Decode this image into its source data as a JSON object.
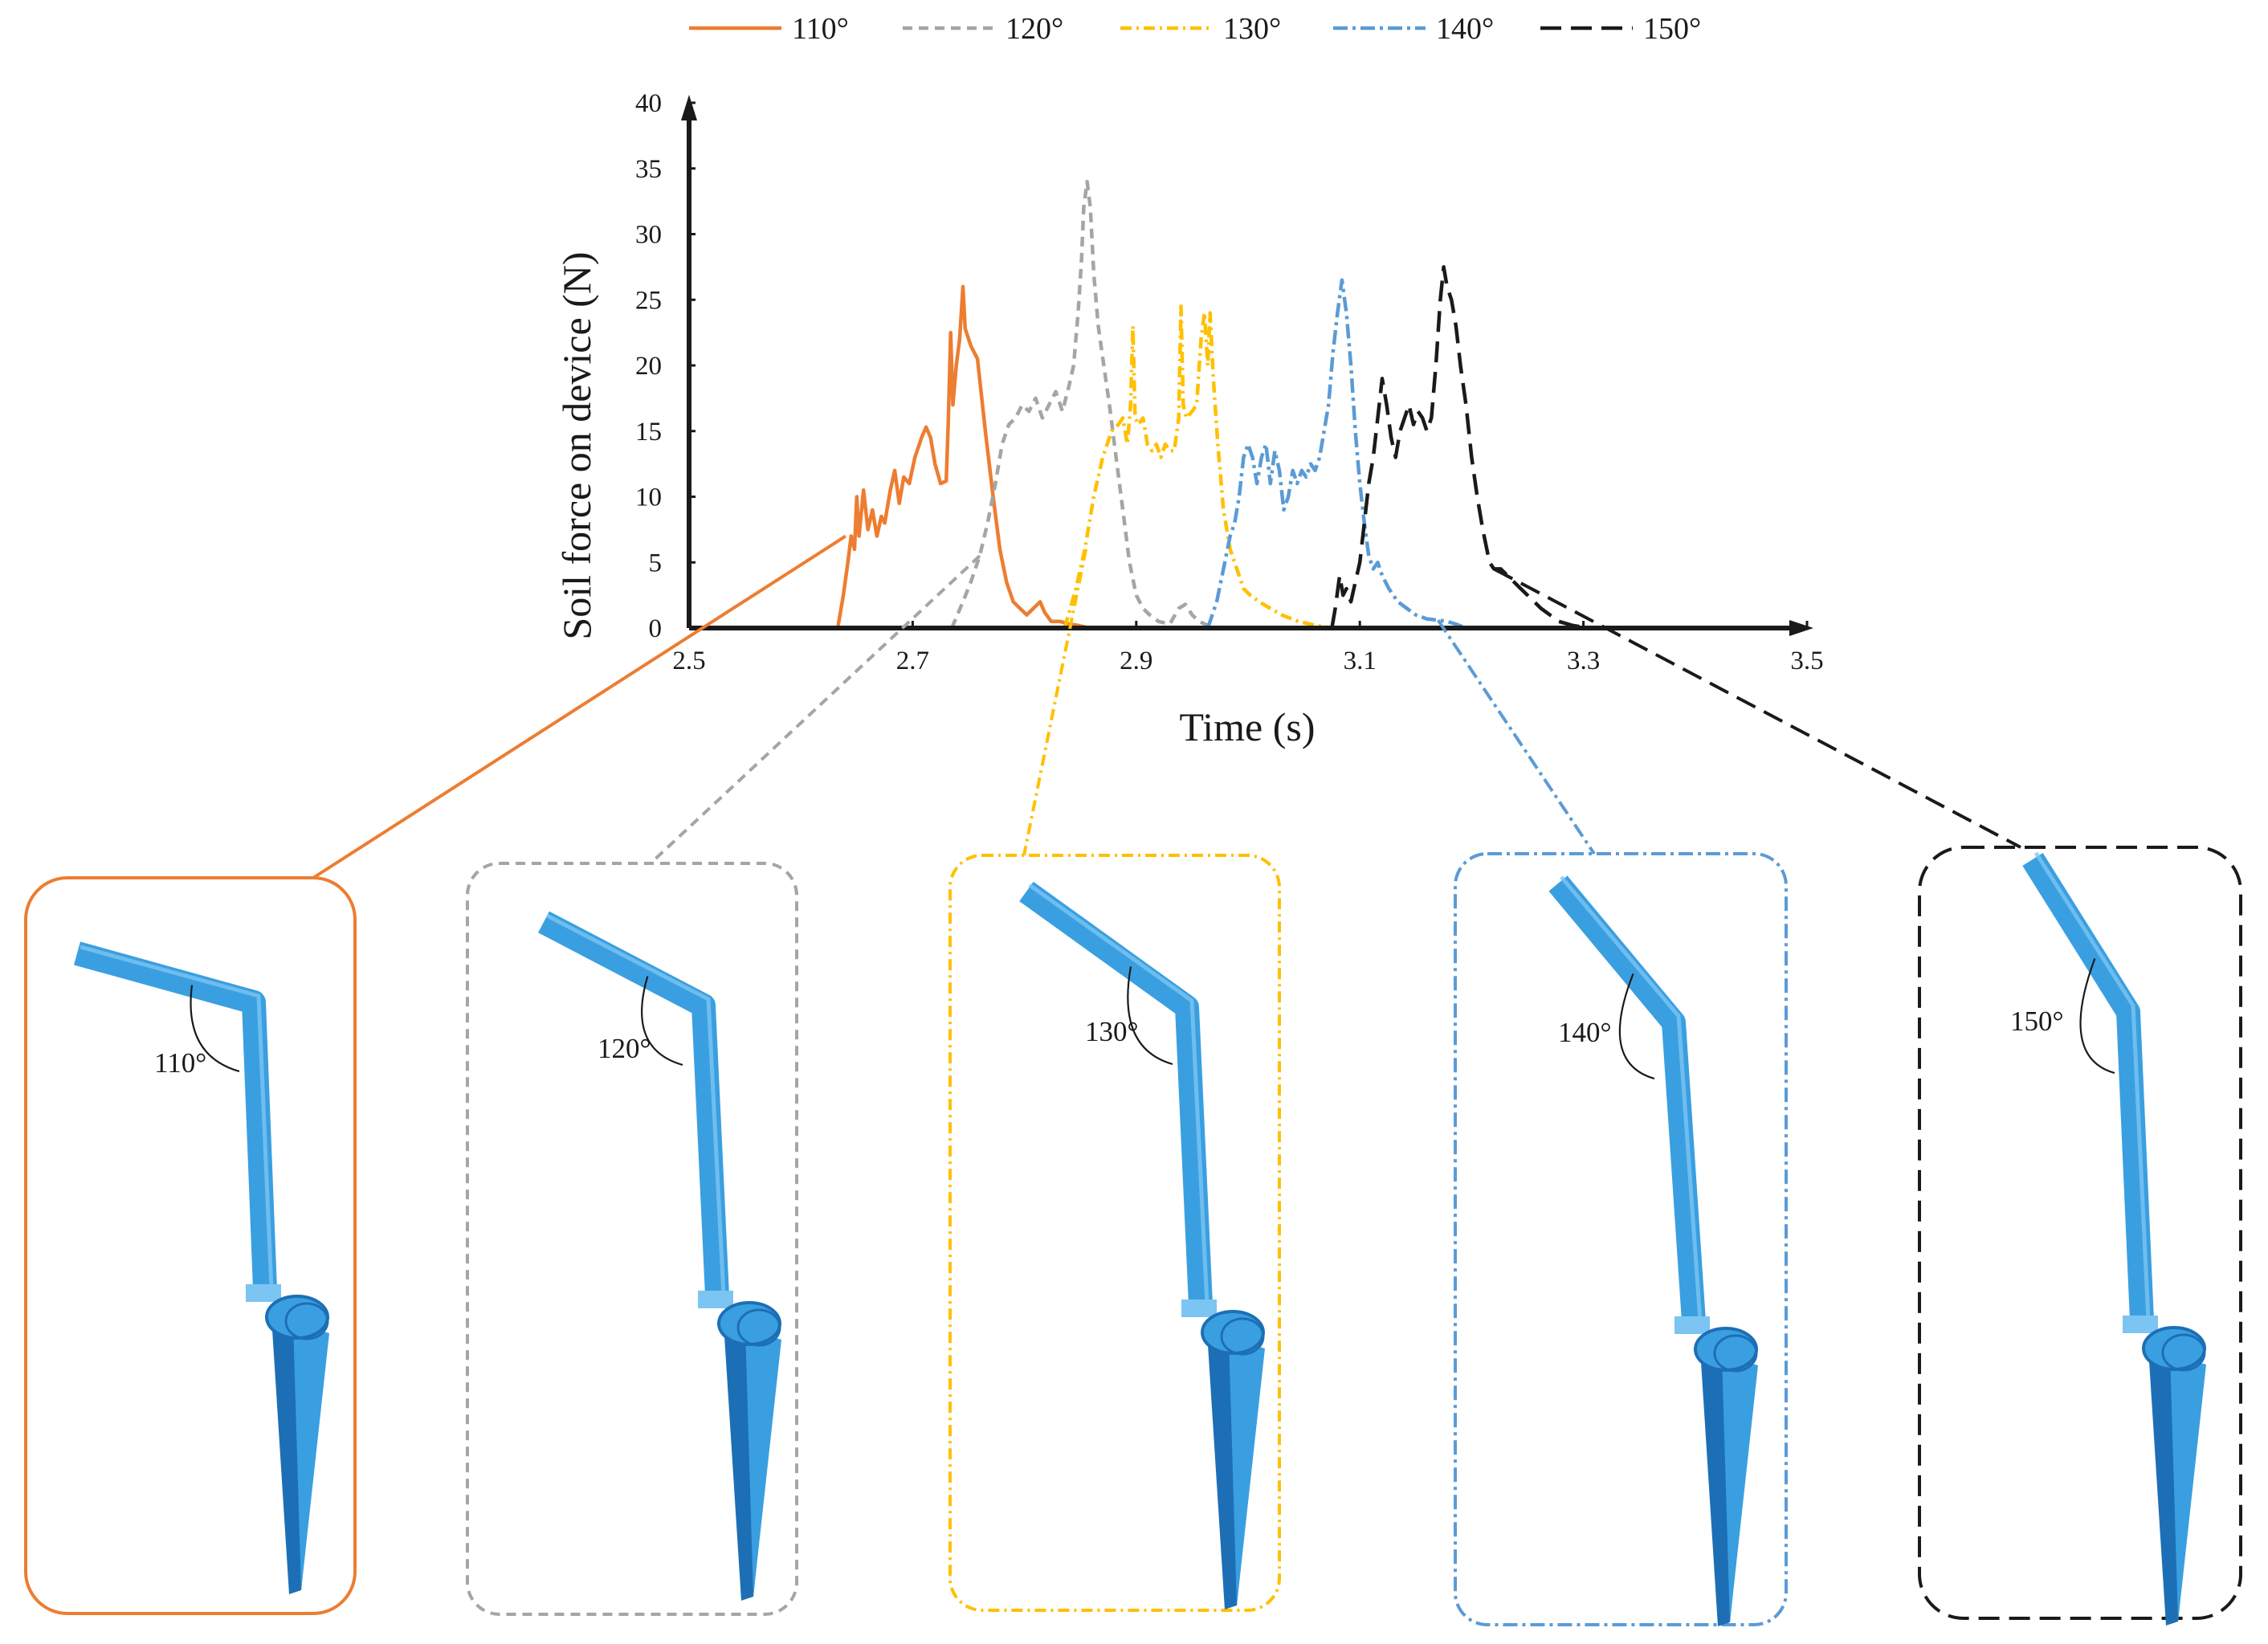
{
  "chart_data": {
    "type": "line",
    "title": "",
    "xlabel": "Time (s)",
    "ylabel": "Soil force on device (N)",
    "xlim": [
      2.5,
      3.5
    ],
    "ylim": [
      0,
      40
    ],
    "xticks": [
      "2.5",
      "2.7",
      "2.9",
      "3.1",
      "3.3",
      "3.5"
    ],
    "yticks": [
      "0",
      "5",
      "10",
      "15",
      "20",
      "25",
      "30",
      "35",
      "40"
    ],
    "legend_position": "top",
    "series": [
      {
        "name": "110°",
        "color": "#ED7D31",
        "dash": "solid",
        "points": [
          [
            2.633,
            0
          ],
          [
            2.638,
            2.5
          ],
          [
            2.642,
            5
          ],
          [
            2.645,
            7
          ],
          [
            2.648,
            6
          ],
          [
            2.65,
            10
          ],
          [
            2.652,
            7
          ],
          [
            2.656,
            10.5
          ],
          [
            2.66,
            7.5
          ],
          [
            2.664,
            9
          ],
          [
            2.668,
            7
          ],
          [
            2.672,
            8.5
          ],
          [
            2.675,
            8
          ],
          [
            2.68,
            10.5
          ],
          [
            2.684,
            12
          ],
          [
            2.688,
            9.5
          ],
          [
            2.692,
            11.5
          ],
          [
            2.697,
            11
          ],
          [
            2.702,
            13
          ],
          [
            2.708,
            14.5
          ],
          [
            2.712,
            15.3
          ],
          [
            2.716,
            14.5
          ],
          [
            2.72,
            12.5
          ],
          [
            2.725,
            11
          ],
          [
            2.73,
            11.2
          ],
          [
            2.732,
            16
          ],
          [
            2.734,
            22.5
          ],
          [
            2.736,
            17
          ],
          [
            2.739,
            20
          ],
          [
            2.742,
            22
          ],
          [
            2.745,
            26
          ],
          [
            2.747,
            22.8
          ],
          [
            2.752,
            21.5
          ],
          [
            2.758,
            20.5
          ],
          [
            2.765,
            15
          ],
          [
            2.772,
            10
          ],
          [
            2.778,
            6
          ],
          [
            2.784,
            3.5
          ],
          [
            2.79,
            2
          ],
          [
            2.796,
            1.5
          ],
          [
            2.802,
            1
          ],
          [
            2.808,
            1.5
          ],
          [
            2.814,
            2
          ],
          [
            2.818,
            1.2
          ],
          [
            2.824,
            0.5
          ],
          [
            2.832,
            0.5
          ],
          [
            2.84,
            0.3
          ],
          [
            2.848,
            0.2
          ],
          [
            2.858,
            0
          ]
        ]
      },
      {
        "name": "120°",
        "color": "#A5A5A5",
        "dash": "12,8",
        "points": [
          [
            2.735,
            0
          ],
          [
            2.745,
            2
          ],
          [
            2.752,
            3.5
          ],
          [
            2.76,
            5.5
          ],
          [
            2.767,
            8
          ],
          [
            2.774,
            11
          ],
          [
            2.78,
            14
          ],
          [
            2.786,
            15.5
          ],
          [
            2.792,
            16
          ],
          [
            2.798,
            17
          ],
          [
            2.804,
            16.5
          ],
          [
            2.81,
            17.5
          ],
          [
            2.816,
            16
          ],
          [
            2.822,
            17
          ],
          [
            2.828,
            18
          ],
          [
            2.834,
            16.5
          ],
          [
            2.84,
            18.5
          ],
          [
            2.844,
            20
          ],
          [
            2.848,
            24
          ],
          [
            2.851,
            28
          ],
          [
            2.853,
            32
          ],
          [
            2.856,
            34
          ],
          [
            2.859,
            32
          ],
          [
            2.862,
            27
          ],
          [
            2.866,
            23
          ],
          [
            2.871,
            20
          ],
          [
            2.876,
            17
          ],
          [
            2.882,
            13
          ],
          [
            2.888,
            9
          ],
          [
            2.894,
            5
          ],
          [
            2.9,
            2.5
          ],
          [
            2.906,
            1.5
          ],
          [
            2.912,
            1
          ],
          [
            2.92,
            0.5
          ],
          [
            2.93,
            0.3
          ],
          [
            2.938,
            1.5
          ],
          [
            2.944,
            1.8
          ],
          [
            2.95,
            1
          ],
          [
            2.956,
            0.5
          ],
          [
            2.964,
            0.2
          ],
          [
            2.975,
            0
          ]
        ]
      },
      {
        "name": "130°",
        "color": "#FFC000",
        "dash": "14,6,3,6",
        "points": [
          [
            2.836,
            0
          ],
          [
            2.846,
            3
          ],
          [
            2.854,
            6
          ],
          [
            2.862,
            10
          ],
          [
            2.87,
            13
          ],
          [
            2.878,
            15
          ],
          [
            2.884,
            15.5
          ],
          [
            2.888,
            16
          ],
          [
            2.892,
            14
          ],
          [
            2.895,
            17
          ],
          [
            2.897,
            23
          ],
          [
            2.899,
            16
          ],
          [
            2.902,
            15.5
          ],
          [
            2.906,
            16
          ],
          [
            2.91,
            14
          ],
          [
            2.914,
            13.5
          ],
          [
            2.918,
            14
          ],
          [
            2.922,
            13
          ],
          [
            2.926,
            14
          ],
          [
            2.93,
            13.5
          ],
          [
            2.934,
            13.5
          ],
          [
            2.938,
            16
          ],
          [
            2.94,
            24.5
          ],
          [
            2.942,
            17
          ],
          [
            2.945,
            16
          ],
          [
            2.95,
            16.5
          ],
          [
            2.954,
            17
          ],
          [
            2.958,
            22
          ],
          [
            2.961,
            24
          ],
          [
            2.964,
            20
          ],
          [
            2.966,
            24
          ],
          [
            2.969,
            19
          ],
          [
            2.973,
            14
          ],
          [
            2.978,
            9
          ],
          [
            2.984,
            6
          ],
          [
            2.99,
            4.5
          ],
          [
            2.996,
            3
          ],
          [
            3.002,
            2.5
          ],
          [
            3.01,
            2
          ],
          [
            3.02,
            1.5
          ],
          [
            3.03,
            1
          ],
          [
            3.045,
            0.5
          ],
          [
            3.06,
            0.2
          ],
          [
            3.075,
            0
          ]
        ]
      },
      {
        "name": "140°",
        "color": "#5B9BD5",
        "dash": "18,6,4,6",
        "points": [
          [
            2.964,
            0
          ],
          [
            2.972,
            2
          ],
          [
            2.978,
            4.5
          ],
          [
            2.984,
            7
          ],
          [
            2.988,
            8
          ],
          [
            2.992,
            10
          ],
          [
            2.996,
            13
          ],
          [
            3.0,
            14
          ],
          [
            3.004,
            13
          ],
          [
            3.008,
            11
          ],
          [
            3.012,
            13
          ],
          [
            3.016,
            14
          ],
          [
            3.02,
            11
          ],
          [
            3.024,
            13.5
          ],
          [
            3.028,
            12
          ],
          [
            3.032,
            9
          ],
          [
            3.036,
            10
          ],
          [
            3.04,
            12
          ],
          [
            3.044,
            11
          ],
          [
            3.048,
            12
          ],
          [
            3.052,
            11.5
          ],
          [
            3.056,
            12.5
          ],
          [
            3.06,
            12
          ],
          [
            3.064,
            13
          ],
          [
            3.068,
            15
          ],
          [
            3.072,
            17
          ],
          [
            3.076,
            21
          ],
          [
            3.08,
            24
          ],
          [
            3.084,
            26.5
          ],
          [
            3.088,
            24
          ],
          [
            3.092,
            20
          ],
          [
            3.096,
            15
          ],
          [
            3.1,
            11
          ],
          [
            3.104,
            8
          ],
          [
            3.108,
            5.5
          ],
          [
            3.112,
            4.5
          ],
          [
            3.116,
            5
          ],
          [
            3.12,
            4
          ],
          [
            3.126,
            3
          ],
          [
            3.134,
            2
          ],
          [
            3.142,
            1.5
          ],
          [
            3.15,
            1
          ],
          [
            3.16,
            0.7
          ],
          [
            3.17,
            0.6
          ],
          [
            3.178,
            0.5
          ],
          [
            3.186,
            0.3
          ],
          [
            3.195,
            0
          ]
        ]
      },
      {
        "name": "150°",
        "color": "#1A1A1A",
        "dash": "26,12",
        "points": [
          [
            3.075,
            0
          ],
          [
            3.078,
            1.5
          ],
          [
            3.082,
            4
          ],
          [
            3.085,
            2.5
          ],
          [
            3.088,
            3
          ],
          [
            3.092,
            2
          ],
          [
            3.096,
            3.5
          ],
          [
            3.1,
            5
          ],
          [
            3.104,
            8
          ],
          [
            3.108,
            11
          ],
          [
            3.112,
            13
          ],
          [
            3.116,
            16
          ],
          [
            3.12,
            19
          ],
          [
            3.124,
            17
          ],
          [
            3.128,
            14.5
          ],
          [
            3.132,
            13
          ],
          [
            3.136,
            15
          ],
          [
            3.14,
            16
          ],
          [
            3.144,
            17
          ],
          [
            3.148,
            15.5
          ],
          [
            3.152,
            16.5
          ],
          [
            3.156,
            16
          ],
          [
            3.16,
            15
          ],
          [
            3.164,
            16
          ],
          [
            3.168,
            20
          ],
          [
            3.172,
            25
          ],
          [
            3.175,
            27.5
          ],
          [
            3.178,
            26
          ],
          [
            3.182,
            25
          ],
          [
            3.186,
            23
          ],
          [
            3.19,
            20
          ],
          [
            3.195,
            17
          ],
          [
            3.2,
            13
          ],
          [
            3.205,
            10
          ],
          [
            3.21,
            7.5
          ],
          [
            3.216,
            5
          ],
          [
            3.22,
            4.5
          ],
          [
            3.226,
            4.5
          ],
          [
            3.232,
            4
          ],
          [
            3.238,
            3.5
          ],
          [
            3.244,
            3
          ],
          [
            3.25,
            2.5
          ],
          [
            3.256,
            2
          ],
          [
            3.262,
            1.5
          ],
          [
            3.27,
            1
          ],
          [
            3.278,
            0.5
          ],
          [
            3.29,
            0.2
          ],
          [
            3.305,
            0
          ]
        ]
      }
    ]
  },
  "panels": [
    {
      "label": "110°",
      "color": "#ED7D31",
      "dash": "solid",
      "angle": 110,
      "link_point": [
        2.64,
        7
      ]
    },
    {
      "label": "120°",
      "color": "#A5A5A5",
      "dash": "12,8",
      "angle": 120,
      "link_point": [
        2.76,
        5.5
      ]
    },
    {
      "label": "130°",
      "color": "#FFC000",
      "dash": "14,6,3,6",
      "angle": 130,
      "link_point": [
        2.855,
        6
      ]
    },
    {
      "label": "140°",
      "color": "#5B9BD5",
      "dash": "18,6,4,6",
      "angle": 140,
      "link_point": [
        3.17,
        0.6
      ]
    },
    {
      "label": "150°",
      "color": "#1A1A1A",
      "dash": "26,12",
      "angle": 150,
      "link_point": [
        3.22,
        4.5
      ]
    }
  ],
  "device_colors": {
    "blade": "#3A9FE0",
    "dark": "#1D6FB5",
    "light": "#7CC4F2"
  }
}
